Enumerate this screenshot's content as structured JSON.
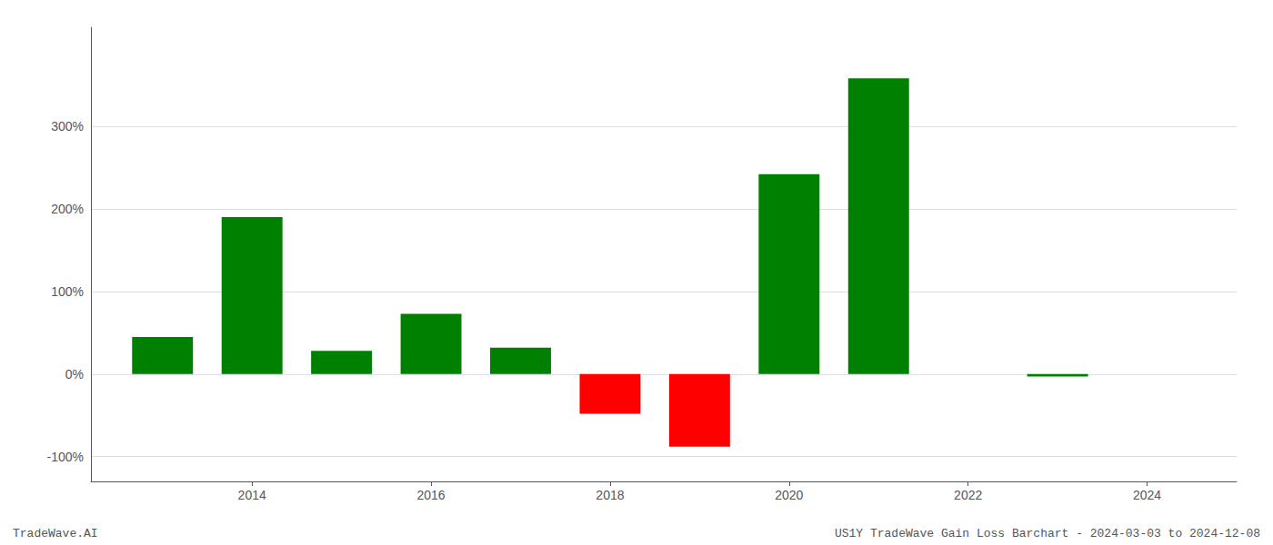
{
  "chart_data": {
    "type": "bar",
    "x": [
      2013,
      2014,
      2015,
      2016,
      2017,
      2018,
      2019,
      2020,
      2021,
      2023
    ],
    "values": [
      45,
      190,
      28,
      73,
      32,
      -48,
      -88,
      242,
      358,
      -3
    ],
    "colors": [
      "#008000",
      "#008000",
      "#008000",
      "#008000",
      "#008000",
      "#ff0000",
      "#ff0000",
      "#008000",
      "#008000",
      "#008000"
    ],
    "xlim": [
      2012.2,
      2025.0
    ],
    "xticks": [
      2014,
      2016,
      2018,
      2020,
      2022,
      2024
    ],
    "ylim": [
      -130,
      420
    ],
    "yticks": [
      {
        "value": -100,
        "label": "-100%"
      },
      {
        "value": 0,
        "label": "0%"
      },
      {
        "value": 100,
        "label": "100%"
      },
      {
        "value": 200,
        "label": "200%"
      },
      {
        "value": 300,
        "label": "300%"
      }
    ],
    "grid": true,
    "annotations": [
      "TradeWave.AI",
      "US1Y TradeWave Gain Loss Barchart - 2024-03-03 to 2024-12-08"
    ]
  }
}
